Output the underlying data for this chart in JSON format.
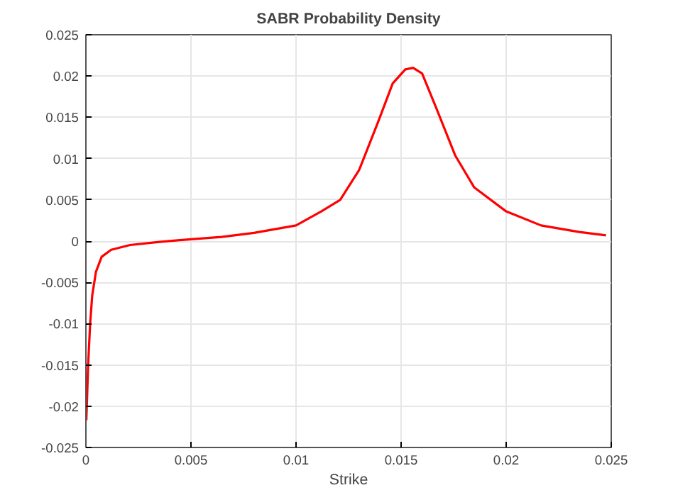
{
  "chart_data": {
    "type": "line",
    "title": "SABR Probability Density",
    "xlabel": "Strike",
    "x": [
      2e-05,
      0.00011,
      0.0002,
      0.0003,
      0.00048,
      0.00075,
      0.0012,
      0.0021,
      0.0035,
      0.005,
      0.00645,
      0.008,
      0.01,
      0.0112,
      0.0121,
      0.013,
      0.0139,
      0.0146,
      0.0152,
      0.01557,
      0.016,
      0.01666,
      0.01757,
      0.01848,
      0.02,
      0.02166,
      0.02348,
      0.02475
    ],
    "series": [
      {
        "color": "#ff0000",
        "values": [
          -0.0217,
          -0.0148,
          -0.0101,
          -0.0066,
          -0.0037,
          -0.0019,
          -0.00105,
          -0.00047,
          -0.0001,
          0.00023,
          0.0005,
          0.001,
          0.0019,
          0.0036,
          0.005,
          0.0086,
          0.0144,
          0.0191,
          0.0208,
          0.021,
          0.0203,
          0.0162,
          0.0104,
          0.0065,
          0.0036,
          0.0019,
          0.0011,
          0.0007
        ]
      }
    ],
    "xlim": [
      0,
      0.025
    ],
    "ylim": [
      -0.025,
      0.025
    ],
    "xticks": [
      0,
      0.005,
      0.01,
      0.015,
      0.02,
      0.025
    ],
    "yticks": [
      -0.025,
      -0.02,
      -0.015,
      -0.01,
      -0.005,
      0,
      0.005,
      0.01,
      0.015,
      0.02,
      0.025
    ],
    "grid": true,
    "line_style": "solid"
  }
}
